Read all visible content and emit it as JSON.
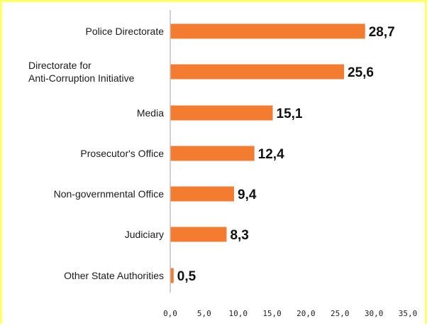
{
  "chart_data": {
    "type": "bar",
    "orientation": "horizontal",
    "categories": [
      [
        "Police Directorate"
      ],
      [
        "Directorate for",
        "Anti-Corruption Initiative"
      ],
      [
        "Media"
      ],
      [
        "Prosecutor's Office"
      ],
      [
        "Non-governmental Office"
      ],
      [
        "Judiciary"
      ],
      [
        "Other State Authorities"
      ]
    ],
    "values": [
      28.7,
      25.6,
      15.1,
      12.4,
      9.4,
      8.3,
      0.5
    ],
    "value_labels": [
      "28,7",
      "25,6",
      "15,1",
      "12,4",
      "9,4",
      "8,3",
      "0,5"
    ],
    "xlim": [
      0,
      35
    ],
    "xticks": [
      0,
      5,
      10,
      15,
      20,
      25,
      30,
      35
    ],
    "xtick_labels": [
      "0,0",
      "5,0",
      "10,0",
      "15,0",
      "20,0",
      "25,0",
      "30,0",
      "35,0"
    ],
    "grid": false,
    "legend": "none",
    "colors": {
      "bar": "#f47c30",
      "axis": "#c0c0c0",
      "frame": "#ffff66"
    }
  }
}
